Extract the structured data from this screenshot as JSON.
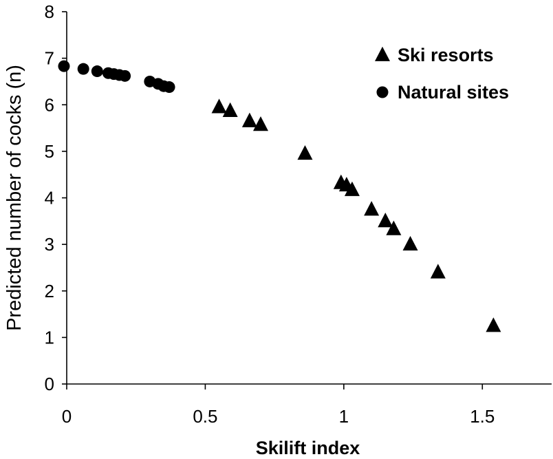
{
  "chart_data": {
    "type": "scatter",
    "title": "",
    "xlabel": "Skilift index",
    "ylabel": "Predicted number of cocks (n)",
    "xlim": [
      0,
      1.75
    ],
    "ylim": [
      0,
      8
    ],
    "x_ticks": [
      0,
      0.5,
      1,
      1.5
    ],
    "x_tick_labels": [
      "0",
      "0.5",
      "1",
      "1.5"
    ],
    "y_ticks": [
      0,
      1,
      2,
      3,
      4,
      5,
      6,
      7,
      8
    ],
    "y_tick_labels": [
      "0",
      "1",
      "2",
      "3",
      "4",
      "5",
      "6",
      "7",
      "8"
    ],
    "grid": false,
    "legend_position": "top-right",
    "series": [
      {
        "name": "Ski resorts",
        "marker": "triangle",
        "color": "#000000",
        "points": [
          {
            "x": 0.55,
            "y": 5.95
          },
          {
            "x": 0.59,
            "y": 5.87
          },
          {
            "x": 0.66,
            "y": 5.65
          },
          {
            "x": 0.7,
            "y": 5.57
          },
          {
            "x": 0.86,
            "y": 4.95
          },
          {
            "x": 0.99,
            "y": 4.32
          },
          {
            "x": 1.01,
            "y": 4.27
          },
          {
            "x": 1.03,
            "y": 4.17
          },
          {
            "x": 1.1,
            "y": 3.75
          },
          {
            "x": 1.15,
            "y": 3.5
          },
          {
            "x": 1.18,
            "y": 3.33
          },
          {
            "x": 1.24,
            "y": 3.0
          },
          {
            "x": 1.34,
            "y": 2.4
          },
          {
            "x": 1.54,
            "y": 1.25
          }
        ]
      },
      {
        "name": "Natural sites",
        "marker": "circle",
        "color": "#000000",
        "points": [
          {
            "x": -0.01,
            "y": 6.83
          },
          {
            "x": 0.06,
            "y": 6.77
          },
          {
            "x": 0.11,
            "y": 6.72
          },
          {
            "x": 0.15,
            "y": 6.68
          },
          {
            "x": 0.17,
            "y": 6.66
          },
          {
            "x": 0.19,
            "y": 6.64
          },
          {
            "x": 0.21,
            "y": 6.62
          },
          {
            "x": 0.3,
            "y": 6.5
          },
          {
            "x": 0.33,
            "y": 6.45
          },
          {
            "x": 0.35,
            "y": 6.4
          },
          {
            "x": 0.37,
            "y": 6.38
          }
        ]
      }
    ]
  }
}
